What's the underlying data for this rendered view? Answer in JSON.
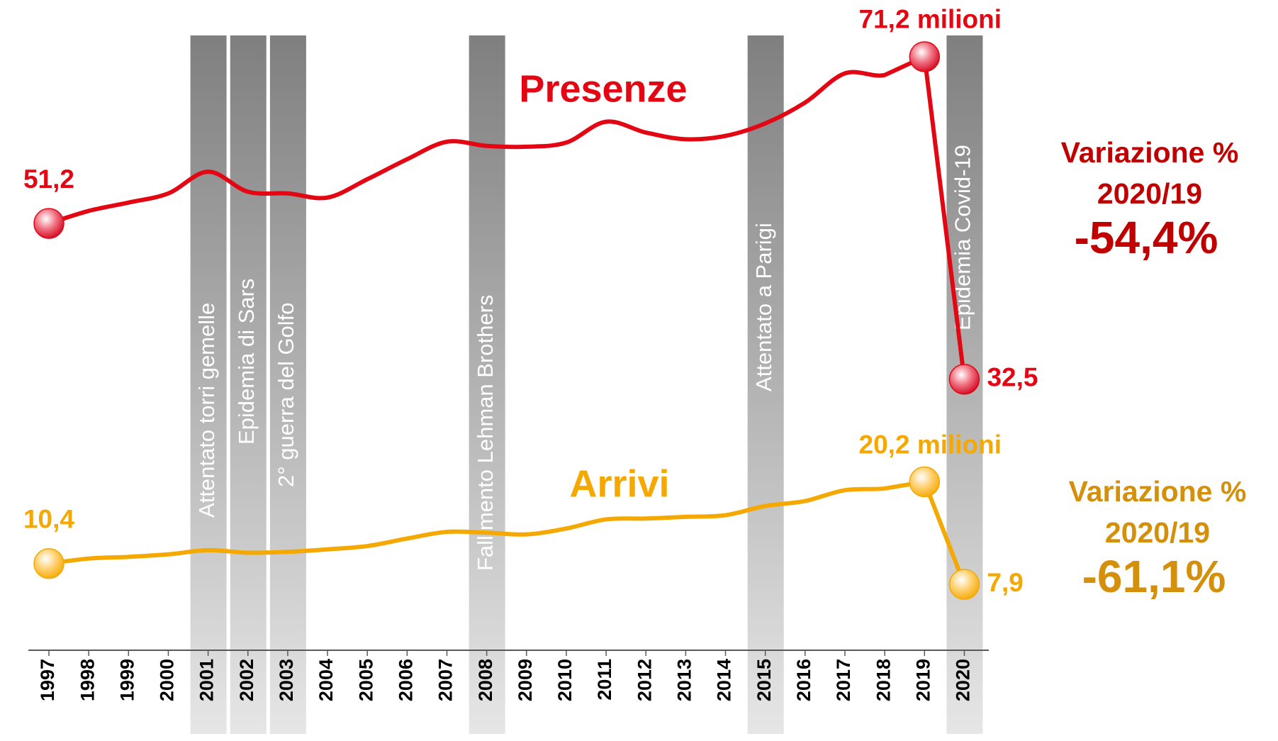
{
  "chart_data": {
    "type": "line",
    "categories": [
      "1997",
      "1998",
      "1999",
      "2000",
      "2001",
      "2002",
      "2003",
      "2004",
      "2005",
      "2006",
      "2007",
      "2008",
      "2009",
      "2010",
      "2011",
      "2012",
      "2013",
      "2014",
      "2015",
      "2016",
      "2017",
      "2018",
      "2019",
      "2020"
    ],
    "series": [
      {
        "name": "Presenze",
        "color": "#e30613",
        "values": [
          51.2,
          52.7,
          53.7,
          54.8,
          57.4,
          55.0,
          54.8,
          54.3,
          56.5,
          58.9,
          61.0,
          60.5,
          60.4,
          60.9,
          63.4,
          62.1,
          61.3,
          61.7,
          63.2,
          65.7,
          69.2,
          69.0,
          71.2,
          32.5
        ],
        "value_labels": [
          "51,2",
          null,
          null,
          null,
          null,
          null,
          null,
          null,
          null,
          null,
          null,
          null,
          null,
          null,
          null,
          null,
          null,
          null,
          null,
          null,
          null,
          null,
          "71,2 milioni",
          "32,5"
        ]
      },
      {
        "name": "Arrivi",
        "color": "#f5a800",
        "values": [
          10.4,
          11.0,
          11.2,
          11.5,
          12.0,
          11.7,
          11.8,
          12.1,
          12.5,
          13.4,
          14.2,
          14.1,
          13.9,
          14.6,
          15.7,
          15.8,
          16.0,
          16.2,
          17.3,
          17.9,
          19.2,
          19.4,
          20.2,
          7.9
        ],
        "value_labels": [
          "10,4",
          null,
          null,
          null,
          null,
          null,
          null,
          null,
          null,
          null,
          null,
          null,
          null,
          null,
          null,
          null,
          null,
          null,
          null,
          null,
          null,
          null,
          "20,2 milioni",
          "7,9"
        ]
      }
    ],
    "ylim": [
      0,
      78
    ],
    "annotations": [
      {
        "x": "2001",
        "label": "Attentato torri gemelle"
      },
      {
        "x": "2002",
        "label": "Epidemia di Sars"
      },
      {
        "x": "2003",
        "label": "2° guerra del Golfo"
      },
      {
        "x": "2008",
        "label": "Fallimento Lehman Brothers"
      },
      {
        "x": "2015",
        "label": "Attentato a Parigi"
      },
      {
        "x": "2020",
        "label": "Epidemia Covid-19"
      }
    ],
    "change_notes": [
      {
        "label": "Variazione %",
        "period": "2020/19",
        "value": "-54,4%",
        "color": "#c00000"
      },
      {
        "label": "Variazione %",
        "period": "2020/19",
        "value": "-61,1%",
        "color": "#d4900a"
      }
    ]
  }
}
